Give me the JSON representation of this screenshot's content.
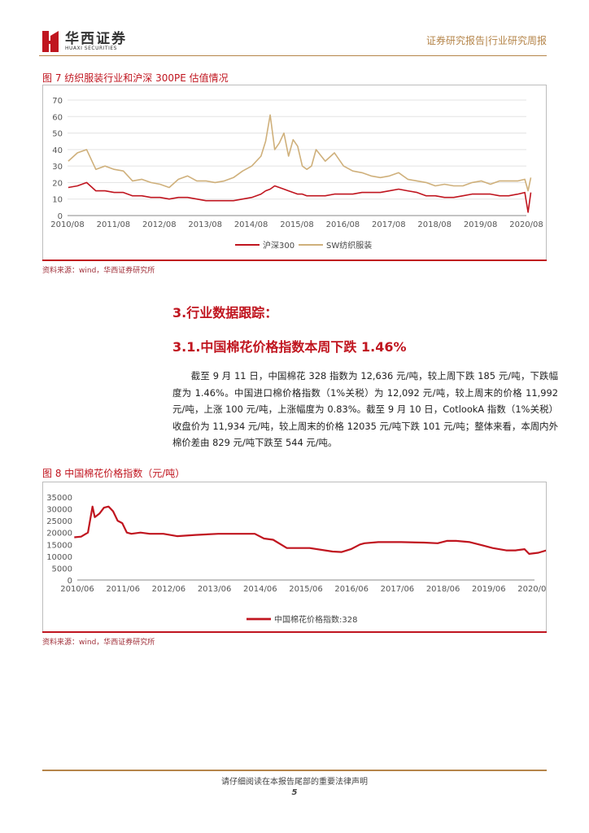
{
  "header": {
    "brand_cn": "华西证券",
    "brand_en": "HUAXI SECURITIES",
    "report_type": "证券研究报告|行业研究周报"
  },
  "figure7": {
    "title": "图 7 纺织服装行业和沪深 300PE 估值情况",
    "source": "资料来源：wind，华西证券研究所",
    "chart_data": {
      "type": "line",
      "title": "",
      "xlabel": "",
      "ylabel": "",
      "ylim": [
        0,
        70
      ],
      "yticks": [
        0,
        10,
        20,
        30,
        40,
        50,
        60,
        70
      ],
      "xticks": [
        "2010/08",
        "2011/08",
        "2012/08",
        "2013/08",
        "2014/08",
        "2015/08",
        "2016/08",
        "2017/08",
        "2018/08",
        "2019/08",
        "2020/08"
      ],
      "legend_position": "bottom",
      "grid": true,
      "x": [
        2010.6,
        2010.8,
        2011.0,
        2011.2,
        2011.4,
        2011.6,
        2011.8,
        2012.0,
        2012.2,
        2012.4,
        2012.6,
        2012.8,
        2013.0,
        2013.2,
        2013.4,
        2013.6,
        2013.8,
        2014.0,
        2014.2,
        2014.4,
        2014.6,
        2014.8,
        2014.9,
        2015.0,
        2015.1,
        2015.2,
        2015.3,
        2015.4,
        2015.5,
        2015.6,
        2015.7,
        2015.8,
        2015.9,
        2016.0,
        2016.2,
        2016.4,
        2016.6,
        2016.8,
        2017.0,
        2017.2,
        2017.4,
        2017.6,
        2017.8,
        2018.0,
        2018.2,
        2018.4,
        2018.6,
        2018.8,
        2019.0,
        2019.2,
        2019.4,
        2019.6,
        2019.8,
        2020.0,
        2020.2,
        2020.4,
        2020.55,
        2020.62,
        2020.68
      ],
      "series": [
        {
          "name": "沪深300",
          "color": "#c0151f",
          "values": [
            17,
            18,
            20,
            15,
            15,
            14,
            14,
            12,
            12,
            11,
            11,
            10,
            11,
            11,
            10,
            9,
            9,
            9,
            9,
            10,
            11,
            13,
            15,
            16,
            18,
            17,
            16,
            15,
            14,
            13,
            13,
            12,
            12,
            12,
            12,
            13,
            13,
            13,
            14,
            14,
            14,
            15,
            16,
            15,
            14,
            12,
            12,
            11,
            11,
            12,
            13,
            13,
            13,
            12,
            12,
            13,
            14,
            2,
            14
          ]
        },
        {
          "name": "SW纺织服装",
          "color": "#cfb07b",
          "values": [
            33,
            38,
            40,
            28,
            30,
            28,
            27,
            21,
            22,
            20,
            19,
            17,
            22,
            24,
            21,
            21,
            20,
            21,
            23,
            27,
            30,
            36,
            45,
            61,
            40,
            44,
            50,
            36,
            46,
            42,
            30,
            28,
            30,
            40,
            33,
            38,
            30,
            27,
            26,
            24,
            23,
            24,
            26,
            22,
            21,
            20,
            18,
            19,
            18,
            18,
            20,
            21,
            19,
            21,
            21,
            21,
            22,
            15,
            23
          ]
        }
      ]
    }
  },
  "section": {
    "heading": "3.行业数据跟踪：",
    "subheading": "3.1.中国棉花价格指数本周下跌 1.46%",
    "paragraph": "截至 9 月 11 日，中国棉花 328 指数为 12,636 元/吨，较上周下跌 185 元/吨，下跌幅度为 1.46%。中国进口棉价格指数（1%关税）为 12,092 元/吨，较上周末的价格 11,992 元/吨，上涨 100 元/吨，上涨幅度为 0.83%。截至 9 月 10 日，CotlookA 指数（1%关税）收盘价为 11,934 元/吨，较上周末的价格 12035 元/吨下跌 101 元/吨；整体来看，本周内外棉价差由 829 元/吨下跌至 544 元/吨。"
  },
  "figure8": {
    "title": "图 8 中国棉花价格指数（元/吨）",
    "source": "资料来源：wind，华西证券研究所",
    "chart_data": {
      "type": "line",
      "title": "",
      "xlabel": "",
      "ylabel": "",
      "ylim": [
        0,
        35000
      ],
      "yticks": [
        0,
        5000,
        10000,
        15000,
        20000,
        25000,
        30000,
        35000
      ],
      "xticks": [
        "2010/06",
        "2011/06",
        "2012/06",
        "2013/06",
        "2014/06",
        "2015/06",
        "2016/06",
        "2017/06",
        "2018/06",
        "2019/06",
        "2020/06"
      ],
      "legend_position": "bottom",
      "grid": false,
      "x": [
        2010.35,
        2010.5,
        2010.65,
        2010.75,
        2010.8,
        2010.9,
        2011.0,
        2011.1,
        2011.2,
        2011.3,
        2011.4,
        2011.5,
        2011.6,
        2011.8,
        2012.0,
        2012.3,
        2012.6,
        2013.0,
        2013.5,
        2014.0,
        2014.3,
        2014.5,
        2014.7,
        2015.0,
        2015.5,
        2016.0,
        2016.2,
        2016.4,
        2016.6,
        2016.7,
        2017.0,
        2017.5,
        2018.0,
        2018.3,
        2018.5,
        2018.7,
        2019.0,
        2019.3,
        2019.5,
        2019.8,
        2020.0,
        2020.2,
        2020.3,
        2020.5,
        2020.7
      ],
      "series": [
        {
          "name": "中国棉花价格指数:328",
          "color": "#c0151f",
          "values": [
            18000,
            18300,
            20000,
            31000,
            26500,
            28000,
            30500,
            31000,
            29000,
            25000,
            24000,
            20000,
            19500,
            20000,
            19500,
            19500,
            18500,
            19000,
            19500,
            19500,
            19500,
            17500,
            17000,
            13500,
            13500,
            12000,
            11800,
            13000,
            15000,
            15500,
            16000,
            16000,
            15800,
            15500,
            16500,
            16500,
            16000,
            14500,
            13500,
            12500,
            12500,
            13000,
            11000,
            11500,
            12636
          ]
        }
      ]
    }
  },
  "footer": {
    "note": "请仔细阅读在本报告尾部的重要法律声明",
    "page": "5"
  }
}
